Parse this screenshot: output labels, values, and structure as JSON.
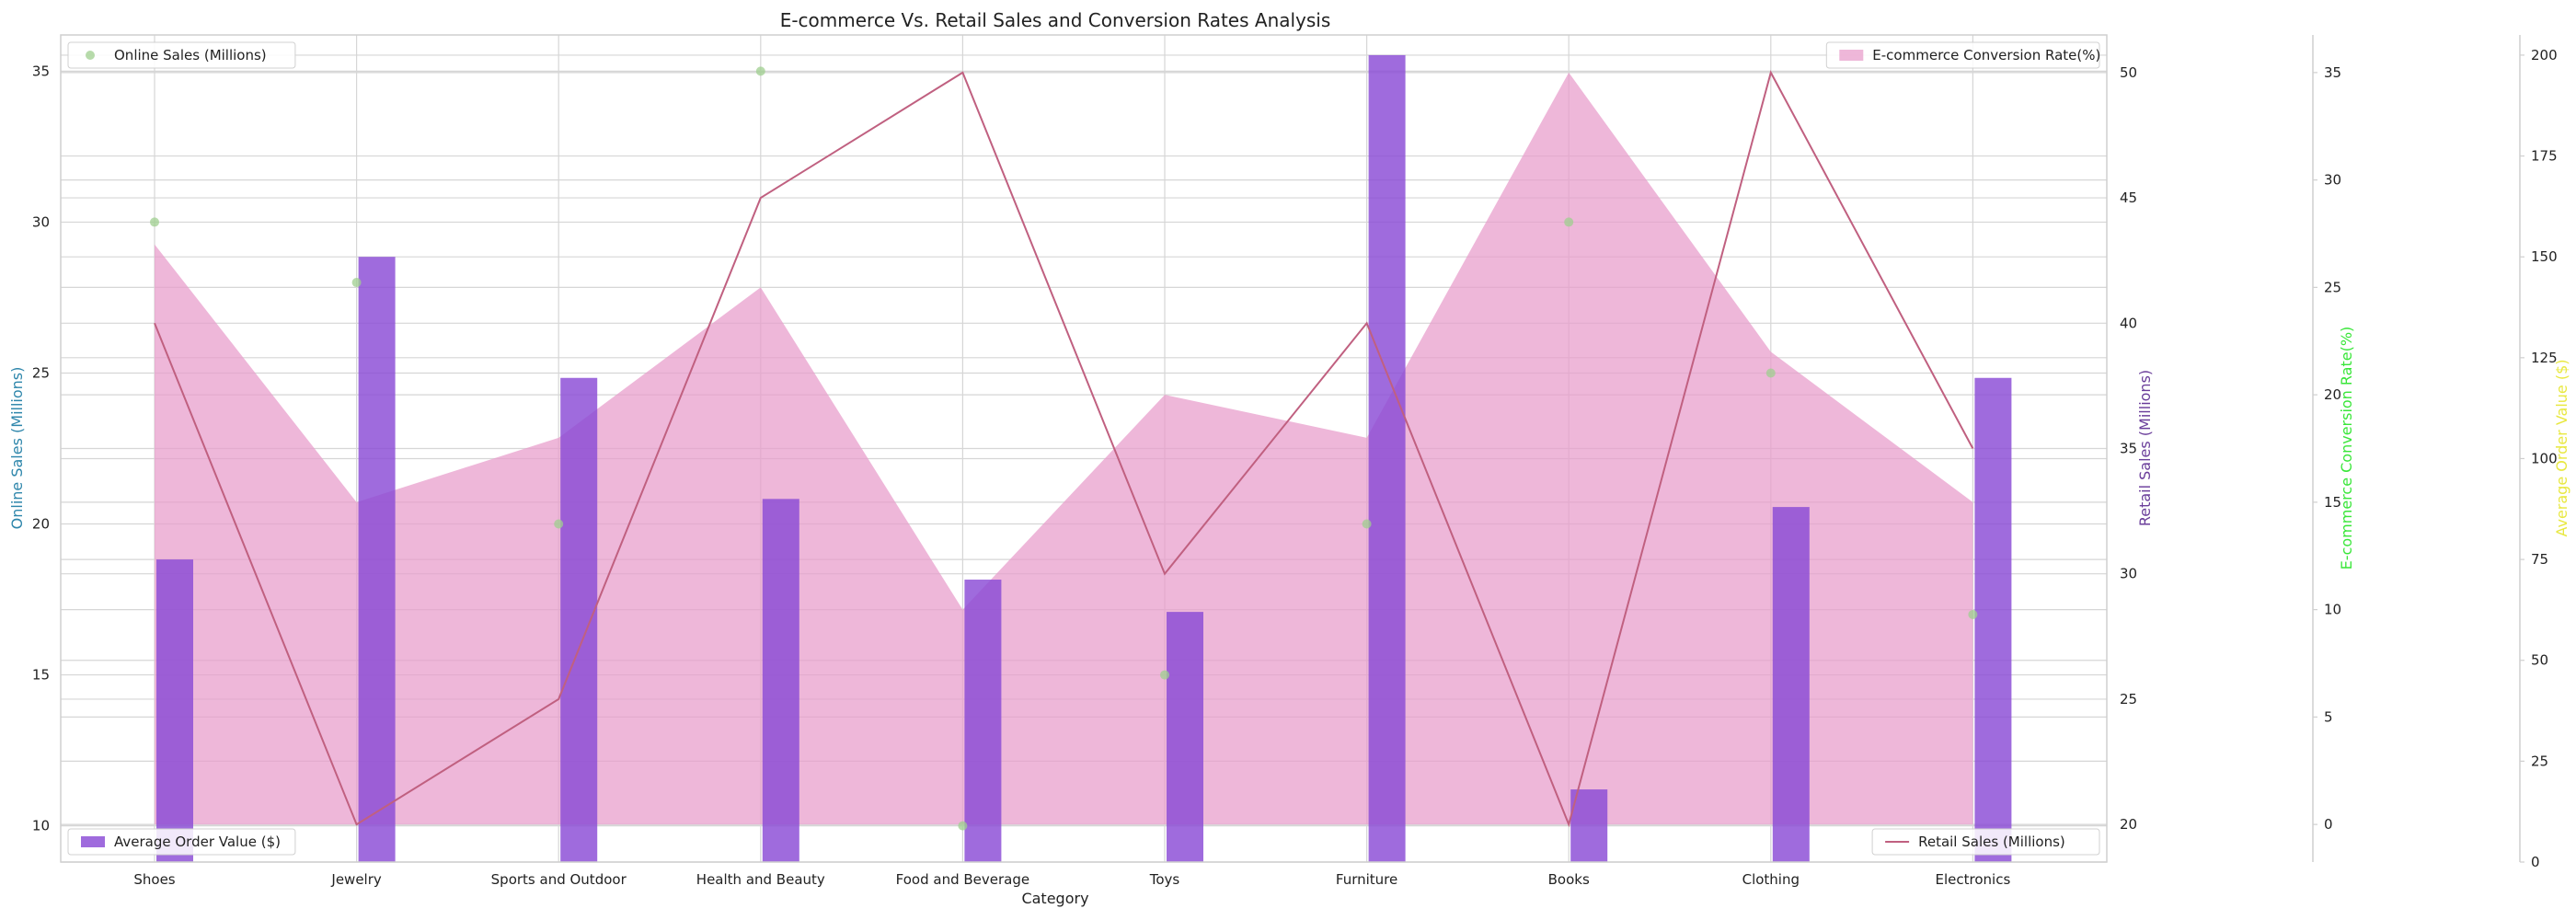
{
  "chart_data": {
    "type": "bar",
    "title": "E-commerce Vs. Retail Sales and Conversion Rates Analysis",
    "xlabel": "Category",
    "categories": [
      "Shoes",
      "Jewelry",
      "Sports and Outdoor",
      "Health and Beauty",
      "Food and Beverage",
      "Toys",
      "Furniture",
      "Books",
      "Clothing",
      "Electronics"
    ],
    "grid": true,
    "axes": {
      "online": {
        "label": "Online Sales (Millions)",
        "ylim": [
          8.8,
          36.2
        ],
        "ticks": [
          10,
          15,
          20,
          25,
          30,
          35
        ],
        "color": "#2e86ab"
      },
      "retail": {
        "label": "Retail Sales (Millions)",
        "ylim": [
          18.5,
          51.5
        ],
        "ticks": [
          20,
          25,
          30,
          35,
          40,
          45,
          50
        ],
        "color": "#6a3d9a"
      },
      "conversion": {
        "label": "E-commerce Conversion Rate(%)",
        "ylim": [
          -1.75,
          36.75
        ],
        "ticks": [
          0,
          5,
          10,
          15,
          20,
          25,
          30,
          35
        ],
        "color": "#39e639"
      },
      "order": {
        "label": "Average Order Value ($)",
        "ylim": [
          0,
          205
        ],
        "ticks": [
          0,
          25,
          50,
          75,
          100,
          125,
          150,
          175,
          200
        ],
        "color": "#e8e840"
      }
    },
    "series": [
      {
        "name": "Online Sales (Millions)",
        "type": "scatter",
        "axis": "online",
        "color": "#9fcf8f",
        "values": [
          30,
          28,
          20,
          35,
          10,
          15,
          20,
          30,
          25,
          17
        ]
      },
      {
        "name": "Retail Sales (Millions)",
        "type": "line",
        "axis": "retail",
        "color": "#c06080",
        "values": [
          40,
          20,
          25,
          45,
          50,
          30,
          40,
          20,
          50,
          35
        ]
      },
      {
        "name": "E-commerce Conversion Rate(%)",
        "type": "area",
        "axis": "conversion",
        "color": "#e89bcb",
        "values": [
          27,
          15,
          18,
          25,
          10,
          20,
          18,
          35,
          22,
          15
        ]
      },
      {
        "name": "Average Order Value ($)",
        "type": "bar",
        "axis": "order",
        "color": "#8a4bd6",
        "values": [
          75,
          150,
          120,
          90,
          70,
          62,
          200,
          18,
          88,
          120
        ]
      }
    ],
    "legend": {
      "online": "top-left",
      "conversion": "top-right",
      "order": "bottom-left",
      "retail": "bottom-right"
    }
  }
}
